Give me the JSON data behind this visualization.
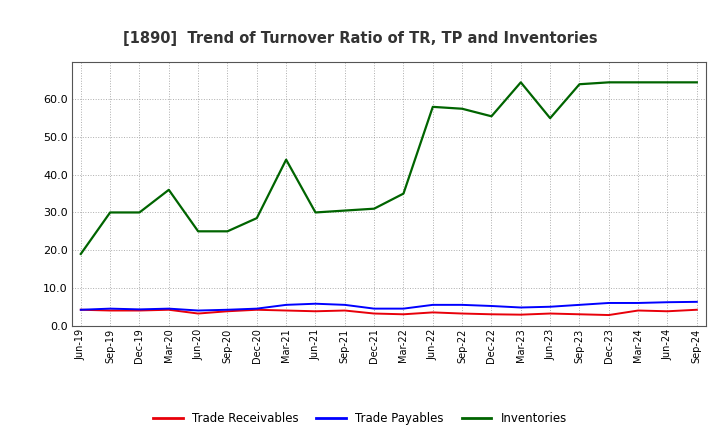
{
  "title": "[1890]  Trend of Turnover Ratio of TR, TP and Inventories",
  "x_labels": [
    "Jun-19",
    "Sep-19",
    "Dec-19",
    "Mar-20",
    "Jun-20",
    "Sep-20",
    "Dec-20",
    "Mar-21",
    "Jun-21",
    "Sep-21",
    "Dec-21",
    "Mar-22",
    "Jun-22",
    "Sep-22",
    "Dec-22",
    "Mar-23",
    "Jun-23",
    "Sep-23",
    "Dec-23",
    "Mar-24",
    "Jun-24",
    "Sep-24"
  ],
  "trade_receivables": [
    4.2,
    4.0,
    4.0,
    4.2,
    3.2,
    3.8,
    4.2,
    4.0,
    3.8,
    4.0,
    3.2,
    3.0,
    3.5,
    3.2,
    3.0,
    2.9,
    3.2,
    3.0,
    2.8,
    4.0,
    3.8,
    4.2
  ],
  "trade_payables": [
    4.2,
    4.5,
    4.3,
    4.5,
    4.0,
    4.2,
    4.5,
    5.5,
    5.8,
    5.5,
    4.5,
    4.5,
    5.5,
    5.5,
    5.2,
    4.8,
    5.0,
    5.5,
    6.0,
    6.0,
    6.2,
    6.3
  ],
  "inventories": [
    19.0,
    30.0,
    30.0,
    36.0,
    25.0,
    25.0,
    28.5,
    44.0,
    30.0,
    30.5,
    31.0,
    35.0,
    58.0,
    57.5,
    55.5,
    64.5,
    55.0,
    64.0,
    64.5,
    64.5,
    64.5,
    64.5
  ],
  "color_tr": "#e8000a",
  "color_tp": "#0000ff",
  "color_inv": "#006400",
  "ylim": [
    0.0,
    70.0
  ],
  "yticks": [
    0.0,
    10.0,
    20.0,
    30.0,
    40.0,
    50.0,
    60.0
  ],
  "legend_labels": [
    "Trade Receivables",
    "Trade Payables",
    "Inventories"
  ],
  "background_color": "#ffffff",
  "grid_color": "#999999"
}
